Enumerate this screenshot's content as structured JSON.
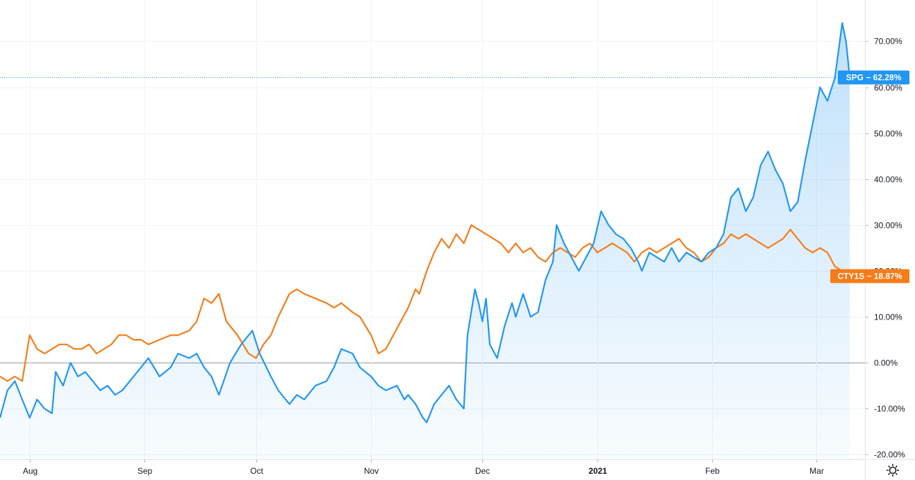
{
  "chart_data": {
    "type": "line",
    "ylabel": "",
    "xlabel": "",
    "title": "",
    "y_unit": "%",
    "ylim": [
      -21,
      79
    ],
    "y_ticks": [
      -20,
      -10,
      0,
      10,
      20,
      30,
      40,
      50,
      60,
      70
    ],
    "y_tick_labels": [
      "-20.00%",
      "-10.00%",
      "0.00%",
      "10.00%",
      "20.00%",
      "30.00%",
      "40.00%",
      "50.00%",
      "60.00%",
      "70.00%"
    ],
    "x_range": [
      "2020-07-24",
      "2021-03-10"
    ],
    "x_ticks": [
      {
        "date": "2020-08-01",
        "label": "Aug",
        "bold": false
      },
      {
        "date": "2020-09-01",
        "label": "Sep",
        "bold": false
      },
      {
        "date": "2020-10-01",
        "label": "Oct",
        "bold": false
      },
      {
        "date": "2020-11-01",
        "label": "Nov",
        "bold": false
      },
      {
        "date": "2020-12-01",
        "label": "Dec",
        "bold": false
      },
      {
        "date": "2021-01-01",
        "label": "2021",
        "bold": true
      },
      {
        "date": "2021-02-01",
        "label": "Feb",
        "bold": false
      },
      {
        "date": "2021-03-01",
        "label": "Mar",
        "bold": false
      }
    ],
    "grid": true,
    "zero_line": true,
    "series": [
      {
        "name": "SPG",
        "color": "#2196f3",
        "area_fill": true,
        "last_label": "SPG − 62.28%",
        "last_value": 62.28,
        "points": [
          [
            "2020-07-24",
            -12
          ],
          [
            "2020-07-26",
            -6
          ],
          [
            "2020-07-28",
            -4
          ],
          [
            "2020-07-30",
            -8
          ],
          [
            "2020-08-01",
            -12
          ],
          [
            "2020-08-03",
            -8
          ],
          [
            "2020-08-05",
            -10
          ],
          [
            "2020-08-07",
            -11
          ],
          [
            "2020-08-08",
            -2
          ],
          [
            "2020-08-10",
            -5
          ],
          [
            "2020-08-12",
            0
          ],
          [
            "2020-08-14",
            -3
          ],
          [
            "2020-08-16",
            -2
          ],
          [
            "2020-08-18",
            -4
          ],
          [
            "2020-08-20",
            -6
          ],
          [
            "2020-08-22",
            -5
          ],
          [
            "2020-08-24",
            -7
          ],
          [
            "2020-08-26",
            -6
          ],
          [
            "2020-08-28",
            -4
          ],
          [
            "2020-08-31",
            -1
          ],
          [
            "2020-09-02",
            1
          ],
          [
            "2020-09-05",
            -3
          ],
          [
            "2020-09-08",
            -1
          ],
          [
            "2020-09-10",
            2
          ],
          [
            "2020-09-13",
            1
          ],
          [
            "2020-09-15",
            2
          ],
          [
            "2020-09-17",
            -1
          ],
          [
            "2020-09-19",
            -3
          ],
          [
            "2020-09-21",
            -7
          ],
          [
            "2020-09-24",
            0
          ],
          [
            "2020-09-27",
            4
          ],
          [
            "2020-09-30",
            7
          ],
          [
            "2020-10-02",
            2
          ],
          [
            "2020-10-05",
            -3
          ],
          [
            "2020-10-07",
            -6
          ],
          [
            "2020-10-10",
            -9
          ],
          [
            "2020-10-12",
            -7
          ],
          [
            "2020-10-14",
            -8
          ],
          [
            "2020-10-17",
            -5
          ],
          [
            "2020-10-20",
            -4
          ],
          [
            "2020-10-22",
            -1
          ],
          [
            "2020-10-24",
            3
          ],
          [
            "2020-10-27",
            2
          ],
          [
            "2020-10-29",
            -1
          ],
          [
            "2020-11-01",
            -3
          ],
          [
            "2020-11-03",
            -5
          ],
          [
            "2020-11-05",
            -6
          ],
          [
            "2020-11-08",
            -5
          ],
          [
            "2020-11-10",
            -8
          ],
          [
            "2020-11-11",
            -7
          ],
          [
            "2020-11-13",
            -9
          ],
          [
            "2020-11-15",
            -12
          ],
          [
            "2020-11-16",
            -13
          ],
          [
            "2020-11-18",
            -9
          ],
          [
            "2020-11-20",
            -7
          ],
          [
            "2020-11-22",
            -5
          ],
          [
            "2020-11-24",
            -8
          ],
          [
            "2020-11-26",
            -10
          ],
          [
            "2020-11-27",
            6
          ],
          [
            "2020-11-29",
            16
          ],
          [
            "2020-11-30",
            13
          ],
          [
            "2020-12-01",
            9
          ],
          [
            "2020-12-02",
            14
          ],
          [
            "2020-12-03",
            4
          ],
          [
            "2020-12-05",
            1
          ],
          [
            "2020-12-07",
            8
          ],
          [
            "2020-12-09",
            13
          ],
          [
            "2020-12-10",
            10
          ],
          [
            "2020-12-12",
            15
          ],
          [
            "2020-12-14",
            10
          ],
          [
            "2020-12-16",
            11
          ],
          [
            "2020-12-18",
            18
          ],
          [
            "2020-12-20",
            22
          ],
          [
            "2020-12-21",
            30
          ],
          [
            "2020-12-23",
            26
          ],
          [
            "2020-12-25",
            23
          ],
          [
            "2020-12-27",
            20
          ],
          [
            "2020-12-29",
            23
          ],
          [
            "2020-12-31",
            26
          ],
          [
            "2021-01-02",
            33
          ],
          [
            "2021-01-04",
            30
          ],
          [
            "2021-01-06",
            28
          ],
          [
            "2021-01-08",
            27
          ],
          [
            "2021-01-10",
            25
          ],
          [
            "2021-01-12",
            22
          ],
          [
            "2021-01-13",
            20
          ],
          [
            "2021-01-15",
            24
          ],
          [
            "2021-01-17",
            23
          ],
          [
            "2021-01-19",
            22
          ],
          [
            "2021-01-21",
            25
          ],
          [
            "2021-01-23",
            22
          ],
          [
            "2021-01-25",
            24
          ],
          [
            "2021-01-27",
            23
          ],
          [
            "2021-01-29",
            22
          ],
          [
            "2021-01-31",
            24
          ],
          [
            "2021-02-02",
            25
          ],
          [
            "2021-02-04",
            28
          ],
          [
            "2021-02-06",
            36
          ],
          [
            "2021-02-08",
            38
          ],
          [
            "2021-02-10",
            33
          ],
          [
            "2021-02-12",
            36
          ],
          [
            "2021-02-14",
            43
          ],
          [
            "2021-02-16",
            46
          ],
          [
            "2021-02-18",
            42
          ],
          [
            "2021-02-20",
            39
          ],
          [
            "2021-02-22",
            33
          ],
          [
            "2021-02-24",
            35
          ],
          [
            "2021-02-26",
            44
          ],
          [
            "2021-02-28",
            52
          ],
          [
            "2021-03-02",
            60
          ],
          [
            "2021-03-04",
            57
          ],
          [
            "2021-03-06",
            62
          ],
          [
            "2021-03-08",
            74
          ],
          [
            "2021-03-09",
            70
          ],
          [
            "2021-03-10",
            62.28
          ]
        ]
      },
      {
        "name": "CTY1S",
        "color": "#f57c1a",
        "area_fill": false,
        "last_label": "CTY1S − 18.87%",
        "last_value": 18.87,
        "points": [
          [
            "2020-07-24",
            -3
          ],
          [
            "2020-07-26",
            -4
          ],
          [
            "2020-07-28",
            -3
          ],
          [
            "2020-07-30",
            -4
          ],
          [
            "2020-08-01",
            6
          ],
          [
            "2020-08-03",
            3
          ],
          [
            "2020-08-05",
            2
          ],
          [
            "2020-08-07",
            3
          ],
          [
            "2020-08-09",
            4
          ],
          [
            "2020-08-11",
            4
          ],
          [
            "2020-08-13",
            3
          ],
          [
            "2020-08-15",
            3
          ],
          [
            "2020-08-17",
            4
          ],
          [
            "2020-08-19",
            2
          ],
          [
            "2020-08-21",
            3
          ],
          [
            "2020-08-23",
            4
          ],
          [
            "2020-08-25",
            6
          ],
          [
            "2020-08-27",
            6
          ],
          [
            "2020-08-29",
            5
          ],
          [
            "2020-08-31",
            5
          ],
          [
            "2020-09-02",
            4
          ],
          [
            "2020-09-05",
            5
          ],
          [
            "2020-09-08",
            6
          ],
          [
            "2020-09-10",
            6
          ],
          [
            "2020-09-13",
            7
          ],
          [
            "2020-09-15",
            9
          ],
          [
            "2020-09-17",
            14
          ],
          [
            "2020-09-19",
            13
          ],
          [
            "2020-09-21",
            15
          ],
          [
            "2020-09-23",
            9
          ],
          [
            "2020-09-26",
            6
          ],
          [
            "2020-09-29",
            2
          ],
          [
            "2020-10-01",
            1
          ],
          [
            "2020-10-03",
            4
          ],
          [
            "2020-10-05",
            6
          ],
          [
            "2020-10-07",
            10
          ],
          [
            "2020-10-10",
            15
          ],
          [
            "2020-10-12",
            16
          ],
          [
            "2020-10-14",
            15
          ],
          [
            "2020-10-17",
            14
          ],
          [
            "2020-10-20",
            13
          ],
          [
            "2020-10-22",
            12
          ],
          [
            "2020-10-24",
            13
          ],
          [
            "2020-10-27",
            11
          ],
          [
            "2020-10-29",
            10
          ],
          [
            "2020-11-01",
            6
          ],
          [
            "2020-11-03",
            2
          ],
          [
            "2020-11-05",
            3
          ],
          [
            "2020-11-07",
            6
          ],
          [
            "2020-11-09",
            9
          ],
          [
            "2020-11-11",
            12
          ],
          [
            "2020-11-13",
            16
          ],
          [
            "2020-11-14",
            15
          ],
          [
            "2020-11-16",
            20
          ],
          [
            "2020-11-18",
            24
          ],
          [
            "2020-11-20",
            27
          ],
          [
            "2020-11-22",
            25
          ],
          [
            "2020-11-24",
            28
          ],
          [
            "2020-11-26",
            26
          ],
          [
            "2020-11-28",
            30
          ],
          [
            "2020-11-30",
            29
          ],
          [
            "2020-12-02",
            28
          ],
          [
            "2020-12-04",
            27
          ],
          [
            "2020-12-06",
            26
          ],
          [
            "2020-12-08",
            24
          ],
          [
            "2020-12-10",
            26
          ],
          [
            "2020-12-12",
            24
          ],
          [
            "2020-12-14",
            25
          ],
          [
            "2020-12-16",
            23
          ],
          [
            "2020-12-18",
            22
          ],
          [
            "2020-12-20",
            24
          ],
          [
            "2020-12-22",
            25
          ],
          [
            "2020-12-24",
            24
          ],
          [
            "2020-12-26",
            23
          ],
          [
            "2020-12-28",
            25
          ],
          [
            "2020-12-30",
            26
          ],
          [
            "2021-01-01",
            24
          ],
          [
            "2021-01-03",
            25
          ],
          [
            "2021-01-05",
            26
          ],
          [
            "2021-01-07",
            25
          ],
          [
            "2021-01-09",
            24
          ],
          [
            "2021-01-11",
            22
          ],
          [
            "2021-01-13",
            24
          ],
          [
            "2021-01-15",
            25
          ],
          [
            "2021-01-17",
            24
          ],
          [
            "2021-01-19",
            25
          ],
          [
            "2021-01-21",
            26
          ],
          [
            "2021-01-23",
            27
          ],
          [
            "2021-01-25",
            25
          ],
          [
            "2021-01-27",
            24
          ],
          [
            "2021-01-29",
            22
          ],
          [
            "2021-01-31",
            23
          ],
          [
            "2021-02-02",
            25
          ],
          [
            "2021-02-04",
            26
          ],
          [
            "2021-02-06",
            28
          ],
          [
            "2021-02-08",
            27
          ],
          [
            "2021-02-10",
            28
          ],
          [
            "2021-02-12",
            27
          ],
          [
            "2021-02-14",
            26
          ],
          [
            "2021-02-16",
            25
          ],
          [
            "2021-02-18",
            26
          ],
          [
            "2021-02-20",
            27
          ],
          [
            "2021-02-22",
            29
          ],
          [
            "2021-02-24",
            27
          ],
          [
            "2021-02-26",
            25
          ],
          [
            "2021-02-28",
            24
          ],
          [
            "2021-03-02",
            25
          ],
          [
            "2021-03-04",
            24
          ],
          [
            "2021-03-06",
            21
          ],
          [
            "2021-03-08",
            20
          ],
          [
            "2021-03-09",
            19
          ],
          [
            "2021-03-10",
            18.87
          ]
        ]
      }
    ]
  },
  "ui": {
    "settings_icon": "gear-icon"
  }
}
